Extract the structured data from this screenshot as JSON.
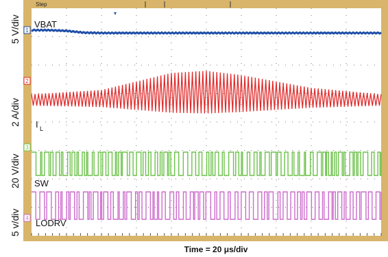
{
  "header": {
    "step_label": "Step"
  },
  "x_axis_label": "Time = 20 μs/div",
  "channels": [
    {
      "marker": "1",
      "trace_label": "VBAT",
      "scale_label": "5 V/div",
      "color": "#1f4fa8"
    },
    {
      "marker": "2",
      "trace_label": "I",
      "trace_subscript": "L",
      "scale_label": "2 A/div",
      "color": "#e02b2b"
    },
    {
      "marker": "3",
      "trace_label": "SW",
      "scale_label": "20 V/div",
      "color": "#6cc24a"
    },
    {
      "marker": "4",
      "trace_label": "LODRV",
      "scale_label": "5 v/div",
      "color": "#cc6bcc"
    }
  ],
  "colors": {
    "bezel": "#d8b56a",
    "grid": "#555555",
    "background": "#ffffff"
  },
  "chart_data": {
    "type": "line",
    "title": "",
    "xlabel": "Time = 20 μs/div",
    "time_per_div_us": 20,
    "x_divisions": 10,
    "y_divisions": 8,
    "grid": true,
    "series": [
      {
        "name": "VBAT",
        "scale_per_div": "5 V/div",
        "description_points_us": [
          0,
          10,
          20,
          30,
          40,
          60,
          100,
          200
        ],
        "values_div": [
          0.0,
          0.0,
          -0.1,
          -0.35,
          -0.4,
          -0.4,
          -0.4,
          -0.4
        ]
      },
      {
        "name": "IL",
        "scale_per_div": "2 A/div",
        "envelope_center_us": [
          0,
          40,
          60,
          80,
          100,
          120,
          140,
          160,
          200
        ],
        "envelope_amplitude_div": [
          0.2,
          0.3,
          0.5,
          0.7,
          0.75,
          0.65,
          0.5,
          0.35,
          0.2
        ]
      },
      {
        "name": "SW",
        "scale_per_div": "20 V/div",
        "waveform": "switching",
        "high_div": 0.9,
        "low_div": 0.0
      },
      {
        "name": "LODRV",
        "scale_per_div": "5 v/div",
        "waveform": "switching",
        "high_div": 1.1,
        "low_div": 0.0
      }
    ]
  }
}
